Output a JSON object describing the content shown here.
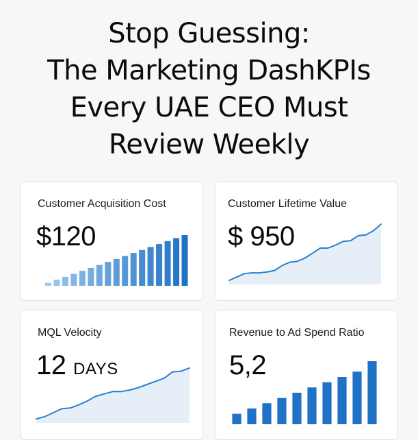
{
  "title_lines": [
    "Stop Guessing:",
    "The Marketing DashKPIs",
    "Every UAE CEO Must",
    "Review Weekly"
  ],
  "cards": {
    "cac": {
      "label": "Customer Acquisition Cost",
      "value": "$120",
      "chart_data": {
        "type": "bar",
        "values": [
          1,
          2,
          3,
          4,
          5,
          6,
          7,
          8,
          9,
          10,
          11,
          12,
          13,
          14,
          15,
          16,
          17
        ],
        "color_start": "#9cc6ea",
        "color_end": "#1f72c6"
      }
    },
    "clv": {
      "label": "Customer Lifetime Value",
      "value": "$ 950",
      "chart_data": {
        "type": "area",
        "values": [
          1.0,
          1.8,
          2.6,
          2.8,
          2.8,
          3.0,
          3.4,
          4.6,
          5.4,
          5.6,
          6.4,
          7.6,
          8.8,
          8.8,
          9.5,
          10.4,
          10.6,
          11.8,
          12.0,
          13.0,
          14.6
        ],
        "line_color": "#2b7fcf",
        "fill_color": "#e6eef8"
      }
    },
    "mql": {
      "label": "MQL Velocity",
      "value": "12",
      "unit": "DAYS",
      "chart_data": {
        "type": "area",
        "values": [
          1.0,
          1.6,
          2.6,
          3.6,
          3.8,
          4.6,
          5.6,
          6.8,
          7.4,
          8.0,
          8.0,
          8.4,
          9.0,
          9.8,
          10.6,
          11.4,
          13.0,
          13.2,
          14.0
        ],
        "line_color": "#2b7fcf",
        "fill_color": "#e6eef8"
      }
    },
    "roas": {
      "label": "Revenue to Ad Spend Ratio",
      "value": "5,2",
      "chart_data": {
        "type": "bar",
        "values": [
          1,
          1.5,
          2,
          2.5,
          3,
          3.5,
          4,
          4.5,
          5,
          6
        ],
        "color": "#1f72c6"
      }
    }
  }
}
